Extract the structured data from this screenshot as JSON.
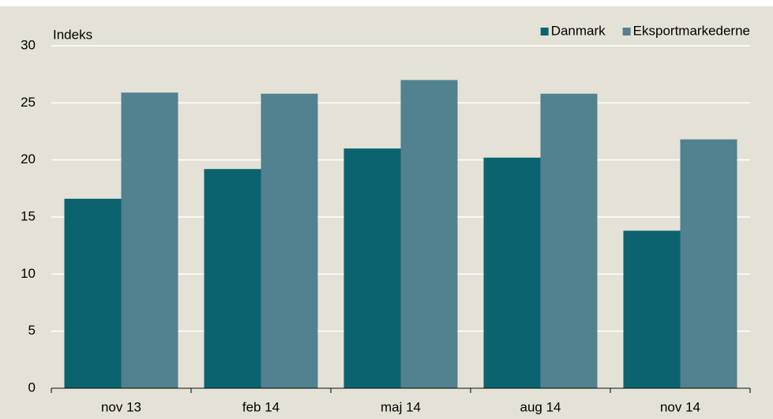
{
  "chart_data": {
    "type": "bar",
    "y_label": "Indeks",
    "categories": [
      "nov 13",
      "feb 14",
      "maj 14",
      "aug 14",
      "nov 14"
    ],
    "series": [
      {
        "name": "Danmark",
        "color": "#0b6370",
        "values": [
          16.6,
          19.2,
          21.0,
          20.2,
          13.8
        ]
      },
      {
        "name": "Eksportmarkederne",
        "color": "#52818f",
        "values": [
          25.9,
          25.8,
          27.0,
          25.8,
          21.8
        ]
      }
    ],
    "ylim": [
      0,
      30
    ],
    "yticks": [
      0,
      5,
      10,
      15,
      20,
      25,
      30
    ],
    "grid": true,
    "legend": "top-right"
  }
}
